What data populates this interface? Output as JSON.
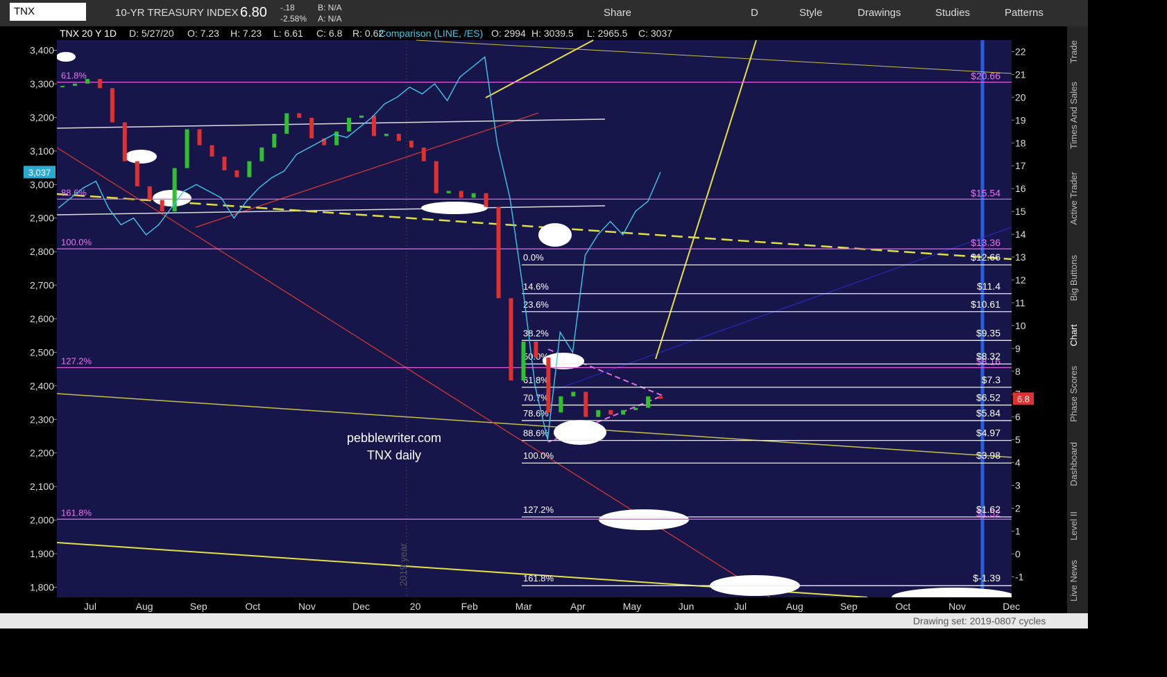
{
  "toolbar": {
    "symbol": "TNX",
    "description": "10-YR TREASURY INDEX",
    "last": "6.80",
    "change": "-.18",
    "change_pct": "-2.58%",
    "bid": "B: N/A",
    "ask": "A: N/A",
    "share": "Share",
    "period": "D",
    "style": "Style",
    "drawings": "Drawings",
    "studies": "Studies",
    "patterns": "Patterns"
  },
  "info_bar": {
    "study": "TNX 20 Y 1D",
    "date": "D: 5/27/20",
    "open": "O: 7.23",
    "high": "H: 7.23",
    "low": "L: 6.61",
    "close": "C: 6.8",
    "range": "R: 0.62",
    "comparison": "Comparison (LINE, /ES)",
    "cmp_open": "O: 2994",
    "cmp_high": "H: 3039.5",
    "cmp_low": "L: 2965.5",
    "cmp_close": "C: 3037"
  },
  "chart": {
    "left_axis": {
      "ylim": [
        3430,
        1770
      ],
      "ticks": [
        {
          "value": 3400,
          "label": "3,400"
        },
        {
          "value": 3300,
          "label": "3,300"
        },
        {
          "value": 3200,
          "label": "3,200"
        },
        {
          "value": 3100,
          "label": "3,100"
        },
        {
          "value": 3000,
          "label": "3,000"
        },
        {
          "value": 2900,
          "label": "2,900"
        },
        {
          "value": 2800,
          "label": "2,800"
        },
        {
          "value": 2700,
          "label": "2,700"
        },
        {
          "value": 2600,
          "label": "2,600"
        },
        {
          "value": 2500,
          "label": "2,500"
        },
        {
          "value": 2400,
          "label": "2,400"
        },
        {
          "value": 2300,
          "label": "2,300"
        },
        {
          "value": 2200,
          "label": "2,200"
        },
        {
          "value": 2100,
          "label": "2,100"
        },
        {
          "value": 2000,
          "label": "2,000"
        },
        {
          "value": 1900,
          "label": "1,900"
        },
        {
          "value": 1800,
          "label": "1,800"
        }
      ],
      "badge": {
        "value": 3037,
        "label": "3,037"
      }
    },
    "right_axis": {
      "ylim": [
        22.5,
        -1.9
      ],
      "ticks": [
        22,
        21,
        20,
        19,
        18,
        17,
        16,
        15,
        14,
        13,
        12,
        11,
        10,
        9,
        8,
        7,
        6,
        5,
        4,
        3,
        2,
        1,
        0,
        -1
      ],
      "badge": 6.8
    },
    "x_labels": [
      "Jul",
      "Aug",
      "Sep",
      "Oct",
      "Nov",
      "Dec",
      "20",
      "Feb",
      "Mar",
      "Apr",
      "May",
      "Jun",
      "Jul",
      "Aug",
      "Sep",
      "Oct",
      "Nov",
      "Dec"
    ],
    "comparison": {
      "name": "/ES",
      "color": "#3fc8e8",
      "values": [
        2930,
        2960,
        2990,
        3010,
        2930,
        2880,
        2900,
        2850,
        2880,
        2930,
        2980,
        3000,
        2980,
        2960,
        2900,
        2950,
        2990,
        3020,
        3040,
        3090,
        3110,
        3130,
        3150,
        3140,
        3170,
        3200,
        3240,
        3260,
        3290,
        3270,
        3300,
        3250,
        3320,
        3350,
        3380,
        3120,
        2960,
        2700,
        2400,
        2240,
        2560,
        2500,
        2790,
        2850,
        2890,
        2850,
        2920,
        2950,
        3037
      ]
    },
    "tnx": {
      "name": "TNX",
      "up_color": "#2fbf2f",
      "down_color": "#e03030",
      "values": [
        20.5,
        20.6,
        20.8,
        20.4,
        18.9,
        17.2,
        16.1,
        15.5,
        15.0,
        16.9,
        18.6,
        17.9,
        17.4,
        16.8,
        16.5,
        17.2,
        17.8,
        18.4,
        19.3,
        19.1,
        18.2,
        17.9,
        18.5,
        19.1,
        19.2,
        18.3,
        18.4,
        18.1,
        17.8,
        17.2,
        15.8,
        15.9,
        15.6,
        15.8,
        15.2,
        11.2,
        7.6,
        9.3,
        8.6,
        6.2,
        6.9,
        7.1,
        6.0,
        6.3,
        6.1,
        6.3,
        6.4,
        6.9,
        6.8
      ]
    },
    "magenta_fib": [
      {
        "pct": "61.8%",
        "value": 20.66,
        "label": "$20.66"
      },
      {
        "pct": "88.6%",
        "value": 15.54,
        "label": "$15.54"
      },
      {
        "pct": "100.0%",
        "value": 13.36,
        "label": "$13.36"
      },
      {
        "pct": "127.2%",
        "value": 8.16,
        "label": "$8.16"
      },
      {
        "pct": "161.8%",
        "value": 1.52,
        "label": "$1.52"
      }
    ],
    "white_fib": [
      {
        "pct": "0.0%",
        "value": 12.66,
        "label": "$12.66"
      },
      {
        "pct": "14.6%",
        "value": 11.4,
        "label": "$11.4"
      },
      {
        "pct": "23.6%",
        "value": 10.61,
        "label": "$10.61"
      },
      {
        "pct": "38.2%",
        "value": 9.35,
        "label": "$9.35"
      },
      {
        "pct": "50.0%",
        "value": 8.32,
        "label": "$8.32"
      },
      {
        "pct": "61.8%",
        "value": 7.3,
        "label": "$7.3"
      },
      {
        "pct": "70.7%",
        "value": 6.52,
        "label": "$6.52"
      },
      {
        "pct": "78.6%",
        "value": 5.84,
        "label": "$5.84"
      },
      {
        "pct": "88.6%",
        "value": 4.97,
        "label": "$4.97"
      },
      {
        "pct": "100.0%",
        "value": 3.98,
        "label": "$3.98"
      },
      {
        "pct": "127.2%",
        "value": 1.62,
        "label": "$1.62"
      },
      {
        "pct": "161.8%",
        "value": -1.39,
        "label": "$-1.39"
      }
    ],
    "annotation": [
      "pebblewriter.com",
      "TNX daily"
    ],
    "watermark": "2019 year"
  },
  "sidebar": [
    "Trade",
    "Times And Sales",
    "Active Trader",
    "Big Buttons",
    "Chart",
    "Phase Scores",
    "Dashboard",
    "Level II",
    "Live News"
  ],
  "status": "Drawing set: 2019-0807 cycles"
}
